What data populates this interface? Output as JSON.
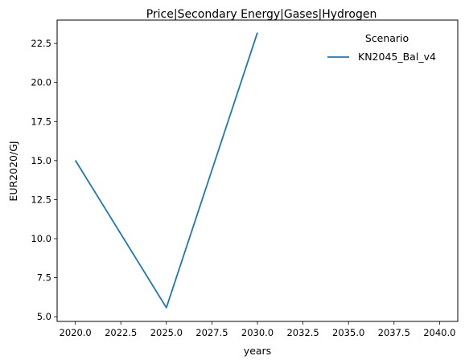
{
  "chart_data": {
    "type": "line",
    "title": "Price|Secondary Energy|Gases|Hydrogen",
    "xlabel": "years",
    "ylabel": "EUR2020/GJ",
    "xlim": [
      2019.0,
      2041.0
    ],
    "ylim": [
      4.7,
      24.0
    ],
    "xticks": [
      2020.0,
      2022.5,
      2025.0,
      2027.5,
      2030.0,
      2032.5,
      2035.0,
      2037.5,
      2040.0
    ],
    "xtick_labels": [
      "2020.0",
      "2022.5",
      "2025.0",
      "2027.5",
      "2030.0",
      "2032.5",
      "2035.0",
      "2037.5",
      "2040.0"
    ],
    "yticks": [
      5.0,
      7.5,
      10.0,
      12.5,
      15.0,
      17.5,
      20.0,
      22.5
    ],
    "ytick_labels": [
      "5.0",
      "7.5",
      "10.0",
      "12.5",
      "15.0",
      "17.5",
      "20.0",
      "22.5"
    ],
    "grid": false,
    "legend": {
      "title": "Scenario",
      "location": "top-right"
    },
    "series": [
      {
        "name": "KN2045_Bal_v4",
        "color": "#1f77b4",
        "x": [
          2020,
          2025,
          2030
        ],
        "y": [
          15.02,
          5.58,
          23.2
        ]
      }
    ]
  }
}
